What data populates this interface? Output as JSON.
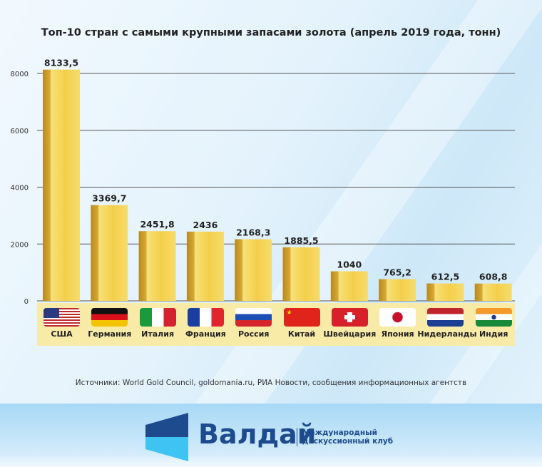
{
  "chart_data": {
    "type": "bar",
    "title": "Топ-10 стран с самыми крупными запасами золота (апрель 2019 года, тонн)",
    "categories": [
      "США",
      "Германия",
      "Италия",
      "Франция",
      "Россия",
      "Китай",
      "Швейцария",
      "Япония",
      "Нидерланды",
      "Индия"
    ],
    "values": [
      8133.5,
      3369.7,
      2451.8,
      2436,
      2168.3,
      1885.5,
      1040,
      765.2,
      612.5,
      608.8
    ],
    "value_labels": [
      "8133,5",
      "3369,7",
      "2451,8",
      "2436",
      "2168,3",
      "1885,5",
      "1040",
      "765,2",
      "612,5",
      "608,8"
    ],
    "yticks": [
      "0",
      "2000",
      "4000",
      "6000",
      "8000"
    ],
    "ylim": [
      0,
      8000
    ],
    "grid": true,
    "bar_color": "#f0c83a",
    "xlabel": "",
    "ylabel": ""
  },
  "flags": [
    "usa-flag",
    "germany-flag",
    "italy-flag",
    "france-flag",
    "russia-flag",
    "china-flag",
    "switzerland-flag",
    "japan-flag",
    "netherlands-flag",
    "india-flag"
  ],
  "source": "Источники: World Gold Council, goldomania.ru, РИА Новости, сообщения информационных агентств",
  "footer": {
    "logo_word": "Валдай",
    "logo_sub_1": "Международный",
    "logo_sub_2": "дискуссионный клуб",
    "brand_color": "#1d4b8e"
  }
}
